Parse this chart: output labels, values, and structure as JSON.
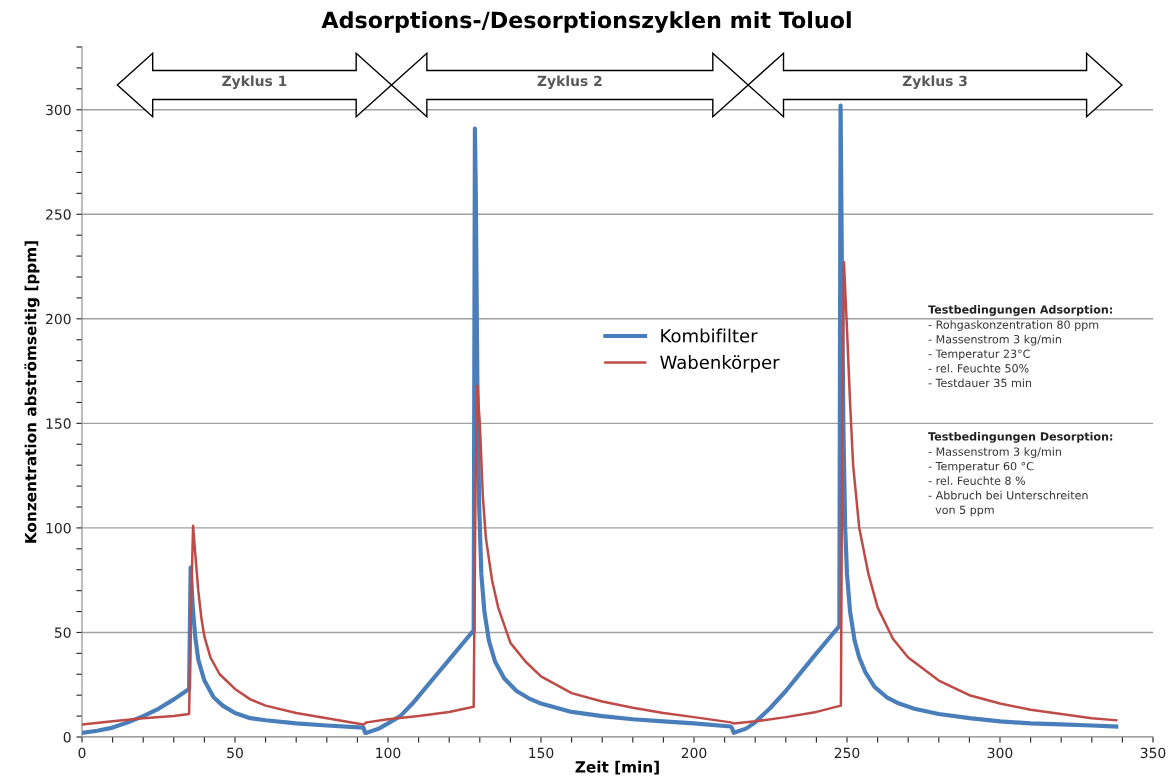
{
  "chart_data": {
    "type": "line",
    "title": "Adsorptions-/Desorptionszyklen mit Toluol",
    "xlabel": "Zeit [min]",
    "ylabel": "Konzentration abströmseitig [ppm]",
    "xlim": [
      0,
      350
    ],
    "ylim": [
      0,
      330
    ],
    "xticks": [
      0,
      {
        "value": 10,
        "label": null
      },
      {
        "value": 20,
        "label": null
      },
      {
        "value": 30,
        "label": null
      },
      {
        "value": 40,
        "label": null
      },
      50,
      {
        "value": 60,
        "label": null
      },
      {
        "value": 70,
        "label": null
      },
      {
        "value": 80,
        "label": null
      },
      {
        "value": 90,
        "label": null
      },
      100,
      {
        "value": 110,
        "label": null
      },
      {
        "value": 120,
        "label": null
      },
      {
        "value": 130,
        "label": null
      },
      {
        "value": 140,
        "label": null
      },
      150,
      {
        "value": 160,
        "label": null
      },
      {
        "value": 170,
        "label": null
      },
      {
        "value": 180,
        "label": null
      },
      {
        "value": 190,
        "label": null
      },
      200,
      {
        "value": 210,
        "label": null
      },
      {
        "value": 220,
        "label": null
      },
      {
        "value": 230,
        "label": null
      },
      {
        "value": 240,
        "label": null
      },
      250,
      {
        "value": 260,
        "label": null
      },
      {
        "value": 270,
        "label": null
      },
      {
        "value": 280,
        "label": null
      },
      {
        "value": 290,
        "label": null
      },
      300,
      {
        "value": 310,
        "label": null
      },
      {
        "value": 320,
        "label": null
      },
      {
        "value": 330,
        "label": null
      },
      {
        "value": 340,
        "label": null
      },
      350
    ],
    "yticks": [
      0,
      {
        "value": 10,
        "label": null
      },
      {
        "value": 20,
        "label": null
      },
      {
        "value": 30,
        "label": null
      },
      {
        "value": 40,
        "label": null
      },
      50,
      {
        "value": 60,
        "label": null
      },
      {
        "value": 70,
        "label": null
      },
      {
        "value": 80,
        "label": null
      },
      {
        "value": 90,
        "label": null
      },
      100,
      {
        "value": 110,
        "label": null
      },
      {
        "value": 120,
        "label": null
      },
      {
        "value": 130,
        "label": null
      },
      {
        "value": 140,
        "label": null
      },
      150,
      {
        "value": 160,
        "label": null
      },
      {
        "value": 170,
        "label": null
      },
      {
        "value": 180,
        "label": null
      },
      {
        "value": 190,
        "label": null
      },
      200,
      {
        "value": 210,
        "label": null
      },
      {
        "value": 220,
        "label": null
      },
      {
        "value": 230,
        "label": null
      },
      {
        "value": 240,
        "label": null
      },
      250,
      {
        "value": 260,
        "label": null
      },
      {
        "value": 270,
        "label": null
      },
      {
        "value": 280,
        "label": null
      },
      {
        "value": 290,
        "label": null
      },
      300,
      {
        "value": 310,
        "label": null
      },
      {
        "value": 320,
        "label": null
      },
      {
        "value": 330,
        "label": null
      }
    ],
    "grid": "y",
    "legend": "center",
    "marker": "none",
    "line_style": "solid",
    "series": [
      {
        "name": "Kombifilter",
        "color": "#4a7ebb",
        "x": [
          0,
          5,
          10,
          15,
          20,
          25,
          30,
          35,
          35.5,
          36.2,
          37,
          38,
          40,
          43,
          46,
          50,
          55,
          60,
          70,
          80,
          92,
          92.5,
          93,
          97,
          100,
          104,
          108,
          112,
          116,
          120,
          124,
          128,
          128.4,
          128.7,
          129.2,
          129.8,
          130.5,
          131.5,
          133,
          135,
          138,
          142,
          146,
          150,
          160,
          170,
          180,
          190,
          200,
          212,
          212.5,
          213,
          217,
          220,
          225,
          230,
          235,
          240,
          244,
          247.5,
          247.9,
          248.3,
          248.8,
          249.4,
          250,
          251,
          252.5,
          254,
          256,
          259,
          263,
          267,
          272,
          280,
          290,
          300,
          310,
          320,
          330,
          338
        ],
        "values": [
          2,
          3,
          4.5,
          7,
          10,
          13.5,
          18,
          23,
          81,
          62,
          48,
          37,
          27,
          19,
          15,
          11.5,
          9,
          8,
          6.5,
          5.5,
          4.5,
          2,
          2,
          4,
          6.5,
          10,
          16,
          23,
          30,
          37,
          44,
          51,
          291,
          260,
          170,
          110,
          78,
          60,
          46,
          36,
          28,
          22,
          18.5,
          16,
          12,
          10,
          8.5,
          7.5,
          6.5,
          5,
          4,
          2,
          4,
          7,
          14,
          22,
          31,
          40,
          47,
          53,
          302,
          230,
          150,
          100,
          78,
          60,
          46,
          38,
          31,
          24,
          19,
          16,
          13.5,
          11,
          9,
          7.5,
          6.5,
          6,
          5.5,
          5
        ]
      },
      {
        "name": "Wabenkörper",
        "color": "#be4b48",
        "x": [
          0,
          10,
          20,
          30,
          35,
          35.6,
          36.3,
          37,
          38,
          39,
          40,
          42,
          45,
          50,
          55,
          60,
          70,
          80,
          92,
          93,
          100,
          110,
          120,
          128,
          128.6,
          129.2,
          130,
          131,
          132,
          134,
          136,
          140,
          145,
          150,
          160,
          170,
          180,
          190,
          200,
          212,
          213,
          220,
          230,
          240,
          248,
          248.5,
          249,
          250,
          251,
          252,
          254,
          257,
          260,
          265,
          270,
          280,
          290,
          300,
          310,
          320,
          330,
          338
        ],
        "values": [
          6,
          7.5,
          9,
          10,
          11,
          60,
          101,
          88,
          70,
          57,
          48,
          38,
          30,
          23,
          18,
          15,
          11.5,
          9,
          6,
          7,
          8.5,
          10,
          12,
          14.5,
          120,
          168,
          150,
          115,
          95,
          75,
          62,
          45,
          36,
          29,
          21,
          17,
          14,
          11.5,
          9.5,
          7,
          6.5,
          7.5,
          9.5,
          12,
          15,
          160,
          227,
          195,
          160,
          130,
          100,
          78,
          62,
          47,
          38,
          27,
          20,
          16,
          13,
          11,
          9,
          8
        ]
      }
    ],
    "annotations": [
      "Zyklus 1",
      "Zyklus 2",
      "Zyklus 3",
      "Testbedingungen Adsorption:\n- Rohgaskonzentration 80 ppm\n- Massenstrom 3 kg/min\n- Temperatur 23°C\n- rel. Feuchte 50%\n- Testdauer 35 min",
      "Testbedingungen Desorption:\n- Massenstrom 3 kg/min\n- Temperatur 60 °C\n- rel. Feuchte 8 %\n- Abbruch bei Unterschreiten\n  von 5 ppm"
    ]
  }
}
